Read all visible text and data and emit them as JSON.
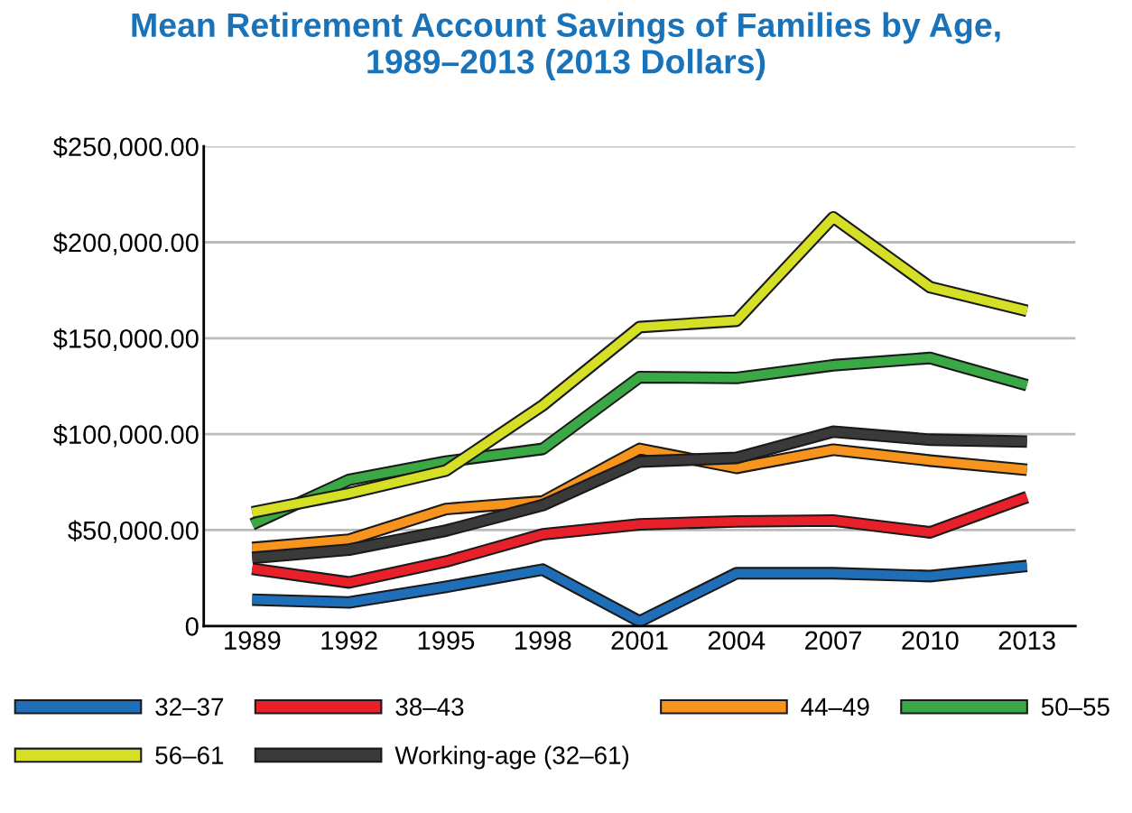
{
  "chart_data": {
    "type": "line",
    "title": "Mean Retirement Account Savings of Families by Age,\n1989–2013 (2013 Dollars)",
    "categories": [
      "1989",
      "1992",
      "1995",
      "1998",
      "2001",
      "2004",
      "2007",
      "2010",
      "2013"
    ],
    "series": [
      {
        "name": "32–37",
        "color": "#1f6fb8",
        "values": [
          13700,
          12300,
          20400,
          29400,
          2400,
          27500,
          27500,
          26000,
          31300
        ]
      },
      {
        "name": "38–43",
        "color": "#e8202a",
        "values": [
          29800,
          22700,
          33600,
          47800,
          53000,
          54500,
          55000,
          48800,
          67200
        ]
      },
      {
        "name": "44–49",
        "color": "#f7941d",
        "values": [
          40700,
          45000,
          61000,
          64900,
          92300,
          82400,
          91900,
          86200,
          81400
        ]
      },
      {
        "name": "50–55",
        "color": "#3aa845",
        "values": [
          53000,
          76200,
          85700,
          92300,
          129700,
          129300,
          135900,
          139700,
          125500
        ]
      },
      {
        "name": "56–61",
        "color": "#d4df26",
        "values": [
          59200,
          69100,
          81000,
          115000,
          155800,
          159100,
          213000,
          176600,
          164300
        ]
      },
      {
        "name": "Working-age (32–61)",
        "color": "#3a3a3a",
        "values": [
          35500,
          39800,
          49700,
          63000,
          85700,
          87600,
          101300,
          97100,
          96100
        ]
      }
    ],
    "ylim": [
      0,
      250000
    ],
    "yticks": [
      {
        "value": 0,
        "label": "0"
      },
      {
        "value": 50000,
        "label": "$50,000.00"
      },
      {
        "value": 100000,
        "label": "$100,000.00"
      },
      {
        "value": 150000,
        "label": "$150,000.00"
      },
      {
        "value": 200000,
        "label": "$200,000.00"
      },
      {
        "value": 250000,
        "label": "$250,000.00"
      }
    ],
    "grid": "y",
    "legend": "bottom",
    "marker": "none",
    "line_style": "solid"
  }
}
